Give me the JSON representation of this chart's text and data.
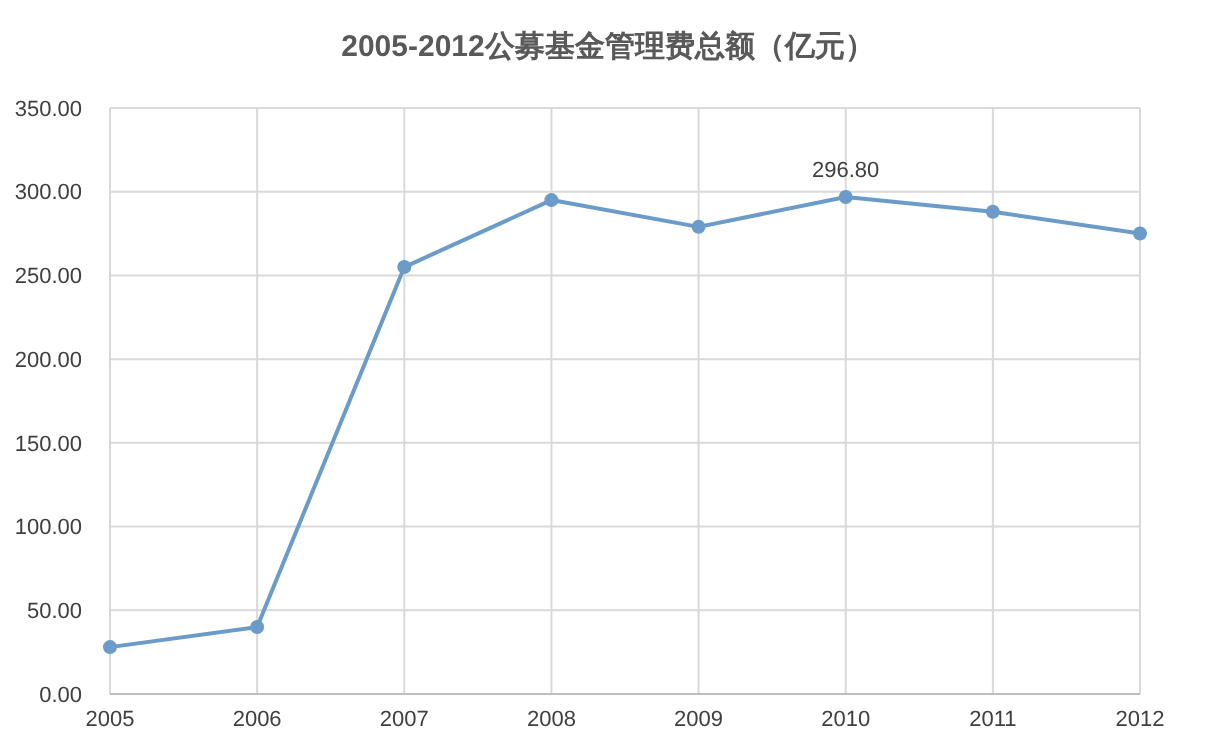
{
  "chart_data": {
    "type": "line",
    "title": "2005-2012公募基金管理费总额（亿元）",
    "categories": [
      "2005",
      "2006",
      "2007",
      "2008",
      "2009",
      "2010",
      "2011",
      "2012"
    ],
    "series": [
      {
        "color": "#6b9bc8",
        "values": [
          28,
          40,
          255,
          295,
          279,
          296.8,
          288,
          275
        ]
      }
    ],
    "ylim": [
      0,
      350
    ],
    "yticks": [
      {
        "value": 0,
        "label": "0.00"
      },
      {
        "value": 50,
        "label": "50.00"
      },
      {
        "value": 100,
        "label": "100.00"
      },
      {
        "value": 150,
        "label": "150.00"
      },
      {
        "value": 200,
        "label": "200.00"
      },
      {
        "value": 250,
        "label": "250.00"
      },
      {
        "value": 300,
        "label": "300.00"
      },
      {
        "value": 350,
        "label": "350.00"
      }
    ],
    "grid": true,
    "marker": "circle",
    "line_style": "solid",
    "annotations": [
      {
        "text": "296.80",
        "x": "2010",
        "y": 296.8
      }
    ]
  }
}
